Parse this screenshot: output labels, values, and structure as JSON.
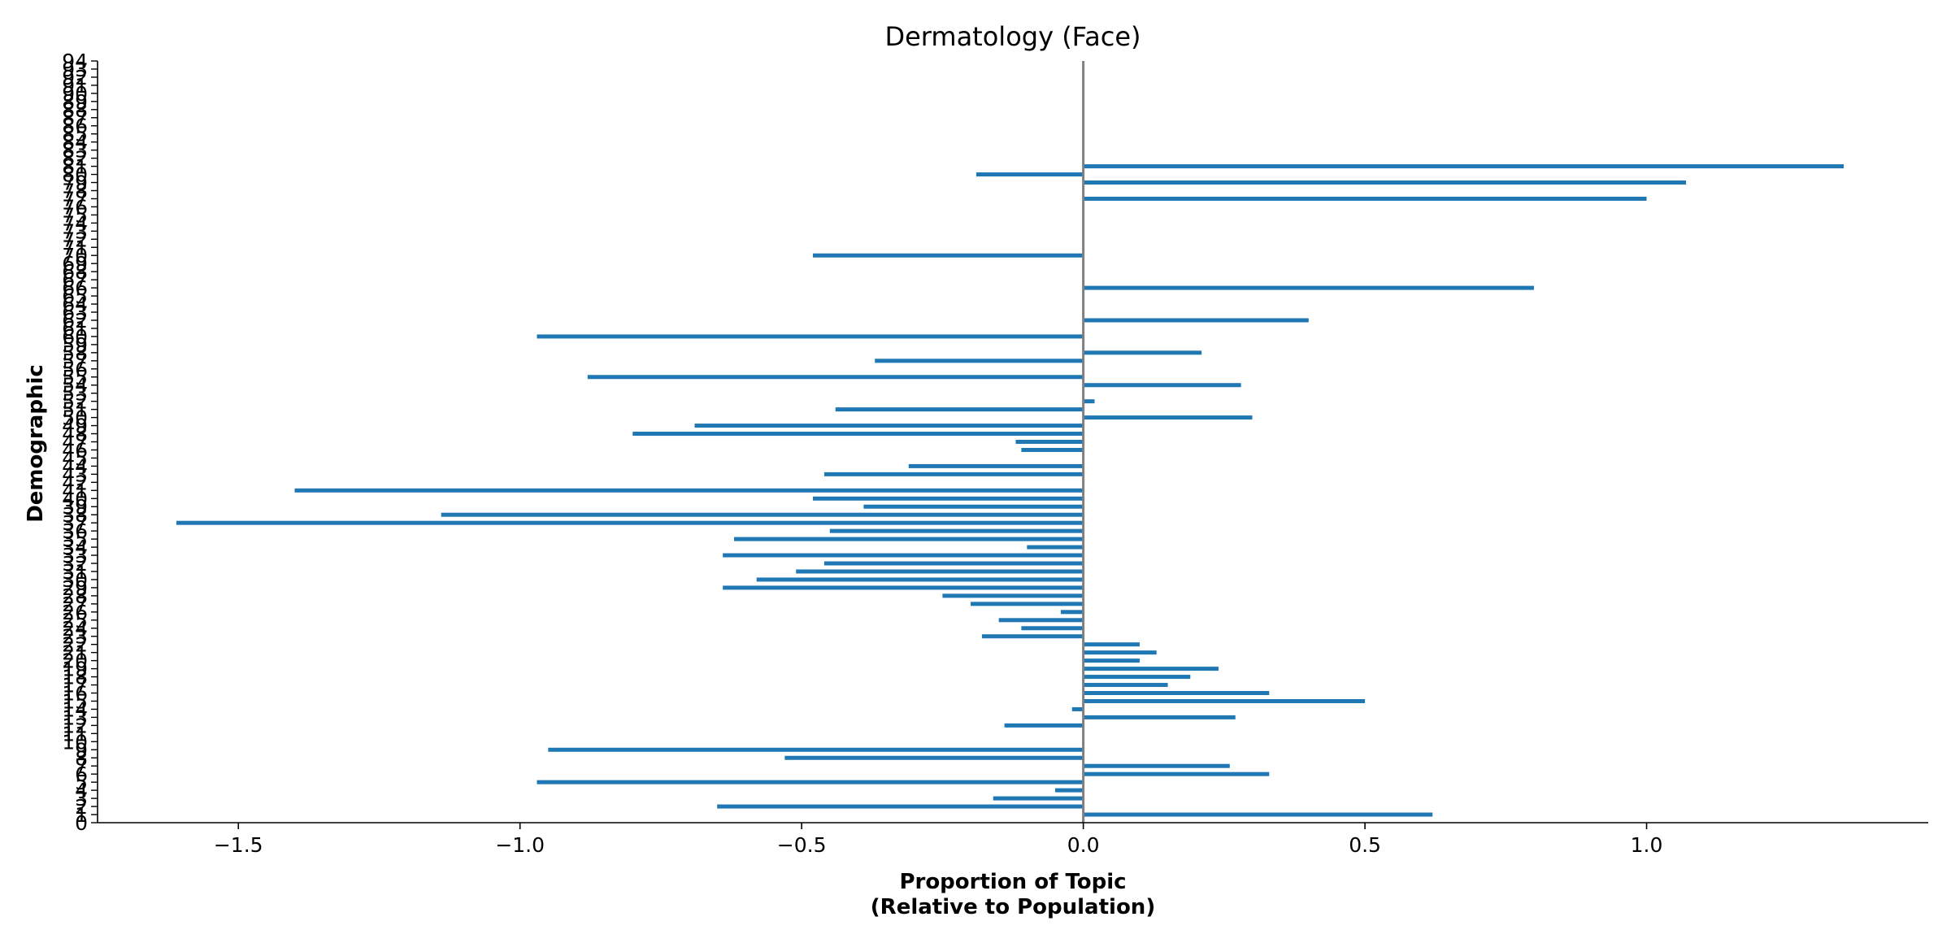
{
  "chart_data": {
    "type": "bar",
    "orientation": "horizontal",
    "title": "Dermatology (Face)",
    "xlabel_lines": [
      "Proportion of Topic",
      "(Relative to Population)"
    ],
    "ylabel": "Demographic",
    "xlim": [
      -1.75,
      1.5
    ],
    "ylim": [
      0,
      94
    ],
    "xticks": [
      -1.5,
      -1.0,
      -0.5,
      0.0,
      0.5,
      1.0
    ],
    "xtick_labels": [
      "−1.5",
      "−1.0",
      "−0.5",
      "0.0",
      "0.5",
      "1.0"
    ],
    "yticks": [
      0,
      1,
      2,
      3,
      4,
      5,
      6,
      7,
      8,
      9,
      10,
      11,
      12,
      13,
      14,
      15,
      16,
      17,
      18,
      19,
      20,
      21,
      22,
      23,
      24,
      25,
      26,
      27,
      28,
      29,
      30,
      31,
      32,
      33,
      34,
      35,
      36,
      37,
      38,
      39,
      40,
      41,
      42,
      43,
      44,
      45,
      46,
      47,
      48,
      49,
      50,
      51,
      52,
      53,
      54,
      55,
      56,
      57,
      58,
      59,
      60,
      61,
      62,
      63,
      64,
      65,
      66,
      67,
      68,
      69,
      70,
      71,
      72,
      73,
      74,
      75,
      76,
      77,
      78,
      79,
      80,
      81,
      82,
      83,
      84,
      85,
      86,
      87,
      88,
      89,
      90,
      91,
      92,
      93,
      94
    ],
    "zero_line": true,
    "grid": false,
    "bar_color": "#1f77b4",
    "zero_line_color": "#808080",
    "bars": [
      {
        "y": 1,
        "value": 0.62
      },
      {
        "y": 2,
        "value": -0.65
      },
      {
        "y": 3,
        "value": -0.16
      },
      {
        "y": 4,
        "value": -0.05
      },
      {
        "y": 5,
        "value": -0.97
      },
      {
        "y": 6,
        "value": 0.33
      },
      {
        "y": 7,
        "value": 0.26
      },
      {
        "y": 8,
        "value": -0.53
      },
      {
        "y": 9,
        "value": -0.95
      },
      {
        "y": 12,
        "value": -0.14
      },
      {
        "y": 13,
        "value": 0.27
      },
      {
        "y": 14,
        "value": -0.02
      },
      {
        "y": 15,
        "value": 0.5
      },
      {
        "y": 16,
        "value": 0.33
      },
      {
        "y": 17,
        "value": 0.15
      },
      {
        "y": 18,
        "value": 0.19
      },
      {
        "y": 19,
        "value": 0.24
      },
      {
        "y": 20,
        "value": 0.1
      },
      {
        "y": 21,
        "value": 0.13
      },
      {
        "y": 22,
        "value": 0.1
      },
      {
        "y": 23,
        "value": -0.18
      },
      {
        "y": 24,
        "value": -0.11
      },
      {
        "y": 25,
        "value": -0.15
      },
      {
        "y": 26,
        "value": -0.04
      },
      {
        "y": 27,
        "value": -0.2
      },
      {
        "y": 28,
        "value": -0.25
      },
      {
        "y": 29,
        "value": -0.64
      },
      {
        "y": 30,
        "value": -0.58
      },
      {
        "y": 31,
        "value": -0.51
      },
      {
        "y": 32,
        "value": -0.46
      },
      {
        "y": 33,
        "value": -0.64
      },
      {
        "y": 34,
        "value": -0.1
      },
      {
        "y": 35,
        "value": -0.62
      },
      {
        "y": 36,
        "value": -0.45
      },
      {
        "y": 37,
        "value": -1.61
      },
      {
        "y": 38,
        "value": -1.14
      },
      {
        "y": 39,
        "value": -0.39
      },
      {
        "y": 40,
        "value": -0.48
      },
      {
        "y": 41,
        "value": -1.4
      },
      {
        "y": 43,
        "value": -0.46
      },
      {
        "y": 44,
        "value": -0.31
      },
      {
        "y": 46,
        "value": -0.11
      },
      {
        "y": 47,
        "value": -0.12
      },
      {
        "y": 48,
        "value": -0.8
      },
      {
        "y": 49,
        "value": -0.69
      },
      {
        "y": 50,
        "value": 0.3
      },
      {
        "y": 51,
        "value": -0.44
      },
      {
        "y": 52,
        "value": 0.02
      },
      {
        "y": 54,
        "value": 0.28
      },
      {
        "y": 55,
        "value": -0.88
      },
      {
        "y": 57,
        "value": -0.37
      },
      {
        "y": 58,
        "value": 0.21
      },
      {
        "y": 60,
        "value": -0.97
      },
      {
        "y": 62,
        "value": 0.4
      },
      {
        "y": 66,
        "value": 0.8
      },
      {
        "y": 70,
        "value": -0.48
      },
      {
        "y": 77,
        "value": 1.0
      },
      {
        "y": 79,
        "value": 1.07
      },
      {
        "y": 80,
        "value": -0.19
      },
      {
        "y": 81,
        "value": 1.35
      }
    ]
  }
}
